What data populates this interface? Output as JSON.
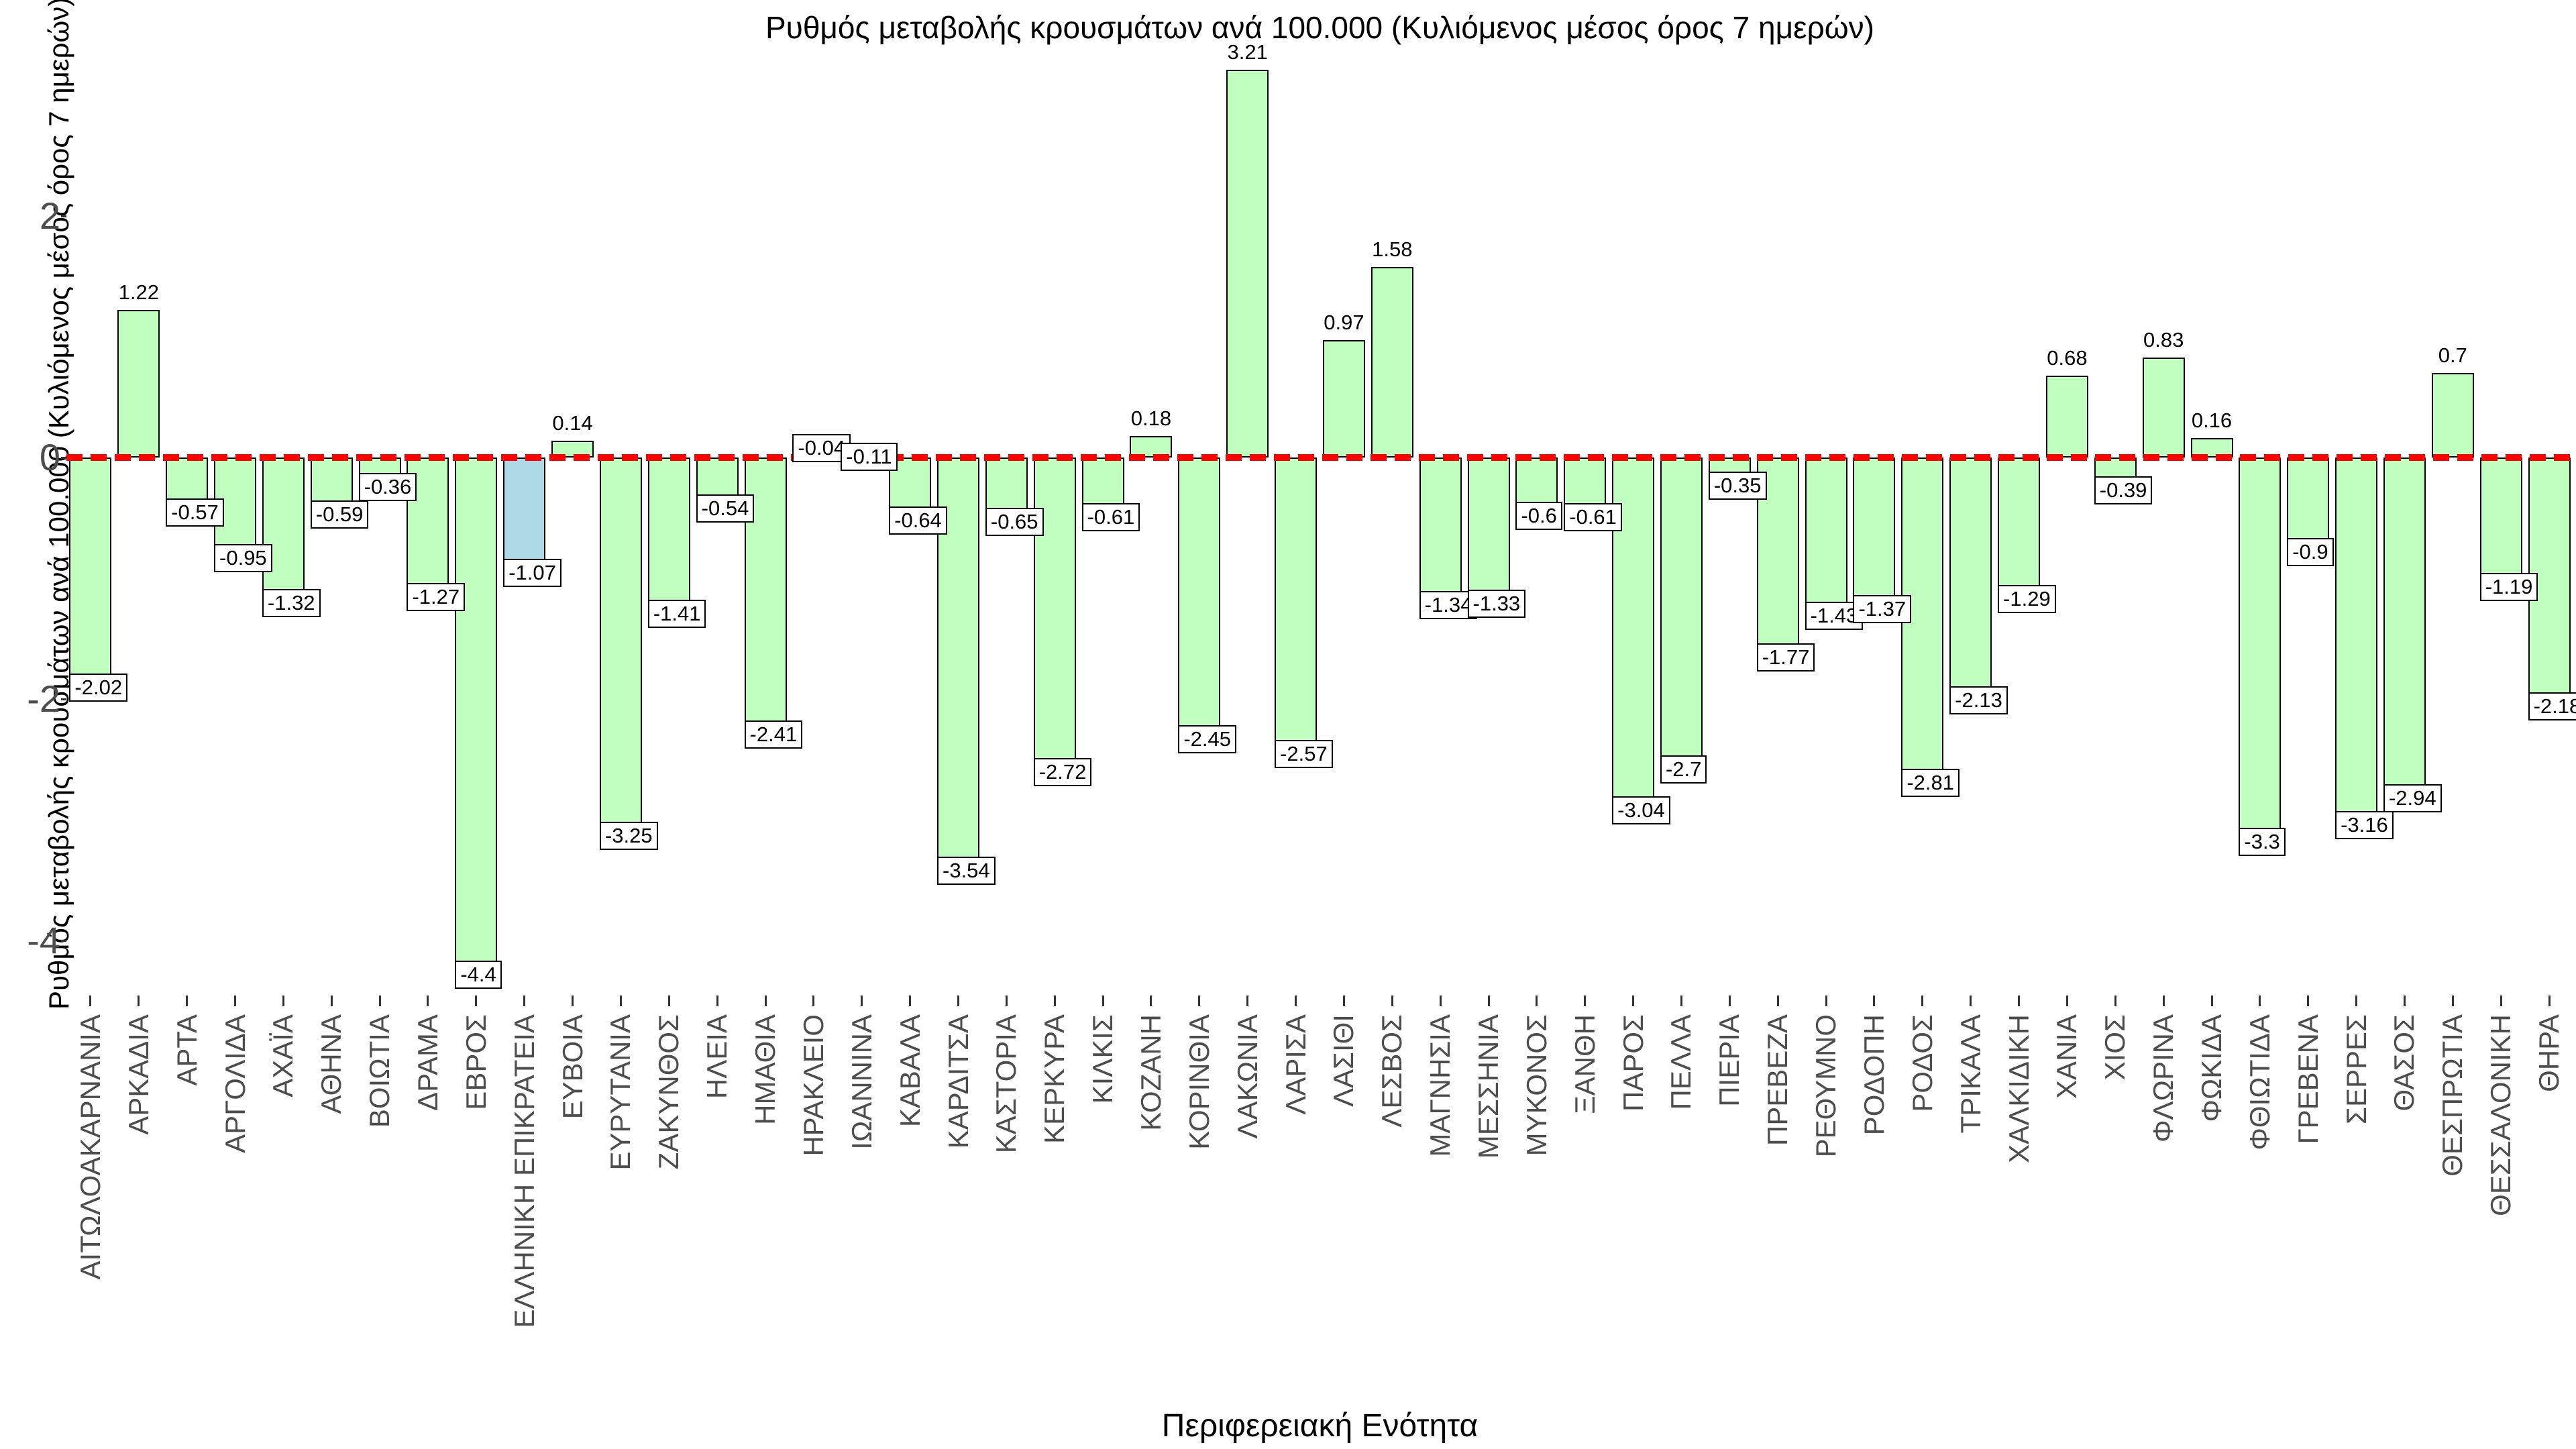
{
  "chart_data": {
    "type": "bar",
    "title": "Ρυθμός μεταβολής κρουσμάτων ανά 100.000 (Κυλιόμενος μέσος όρος 7 ημερών)",
    "xlabel": "Περιφερειακή Ενότητα",
    "ylabel": "Ρυθμός μεταβολής κρουσμάτων ανά 100.000 (Κυλιόμενος μέσος όρος 7 ημερών)",
    "categories": [
      "ΑΙΤΩΛΟΑΚΑΡΝΑΝΙΑ",
      "ΑΡΚΑΔΙΑ",
      "ΑΡΤΑ",
      "ΑΡΓΟΛΙΔΑ",
      "ΑΧΑΪΑ",
      "ΑΘΗΝΑ",
      "ΒΟΙΩΤΙΑ",
      "ΔΡΑΜΑ",
      "ΕΒΡΟΣ",
      "ΕΛΛΗΝΙΚΗ ΕΠΙΚΡΑΤΕΙΑ",
      "ΕΥΒΟΙΑ",
      "ΕΥΡΥΤΑΝΙΑ",
      "ΖΑΚΥΝΘΟΣ",
      "ΗΛΕΙΑ",
      "ΗΜΑΘΙΑ",
      "ΗΡΑΚΛΕΙΟ",
      "ΙΩΑΝΝΙΝΑ",
      "ΚΑΒΑΛΑ",
      "ΚΑΡΔΙΤΣΑ",
      "ΚΑΣΤΟΡΙΑ",
      "ΚΕΡΚΥΡΑ",
      "ΚΙΛΚΙΣ",
      "ΚΟΖΑΝΗ",
      "ΚΟΡΙΝΘΙΑ",
      "ΛΑΚΩΝΙΑ",
      "ΛΑΡΙΣΑ",
      "ΛΑΣΙΘΙ",
      "ΛΕΣΒΟΣ",
      "ΜΑΓΝΗΣΙΑ",
      "ΜΕΣΣΗΝΙΑ",
      "ΜΥΚΟΝΟΣ",
      "ΞΑΝΘΗ",
      "ΠΑΡΟΣ",
      "ΠΕΛΛΑ",
      "ΠΙΕΡΙΑ",
      "ΠΡΕΒΕΖΑ",
      "ΡΕΘΥΜΝΟ",
      "ΡΟΔΟΠΗ",
      "ΡΟΔΟΣ",
      "ΤΡΙΚΑΛΑ",
      "ΧΑΛΚΙΔΙΚΗ",
      "ΧΑΝΙΑ",
      "ΧΙΟΣ",
      "ΦΛΩΡΙΝΑ",
      "ΦΩΚΙΔΑ",
      "ΦΘΙΩΤΙΔΑ",
      "ΓΡΕΒΕΝΑ",
      "ΣΕΡΡΕΣ",
      "ΘΑΣΟΣ",
      "ΘΕΣΠΡΩΤΙΑ",
      "ΘΕΣΣΑΛΟΝΙΚΗ",
      "ΘΗΡΑ"
    ],
    "values": [
      -2.02,
      1.22,
      -0.57,
      -0.95,
      -1.32,
      -0.59,
      -0.36,
      -1.27,
      -4.4,
      -1.07,
      0.14,
      -3.25,
      -1.41,
      -0.54,
      -2.41,
      -0.04,
      -0.11,
      -0.64,
      -3.54,
      -0.65,
      -2.72,
      -0.61,
      0.18,
      -2.45,
      3.21,
      -2.57,
      0.97,
      1.58,
      -1.34,
      -1.33,
      -0.6,
      -0.61,
      -3.04,
      -2.7,
      -0.35,
      -1.77,
      -1.43,
      -1.37,
      -2.81,
      -2.13,
      -1.29,
      0.68,
      -0.39,
      0.83,
      0.16,
      -3.3,
      -0.9,
      -3.16,
      -2.94,
      0.7,
      -1.19,
      -2.18
    ],
    "highlighted_category": "ΕΛΛΗΝΙΚΗ ΕΠΙΚΡΑΤΕΙΑ",
    "yticks": [
      2,
      0,
      -2,
      -4
    ],
    "ylim": [
      -4.45,
      3.45
    ],
    "grid": false,
    "legend": false,
    "zero_line": {
      "color": "#FF0000",
      "style": "dashed"
    },
    "colors": {
      "bar_fill": "#C1FFC1",
      "highlight_fill": "#ADD8E6",
      "bar_border": "#000000",
      "axis_text": "#4D4D4D",
      "title_text": "#000000",
      "label_box_fill": "#FFFFFF",
      "label_box_border": "#000000"
    }
  }
}
